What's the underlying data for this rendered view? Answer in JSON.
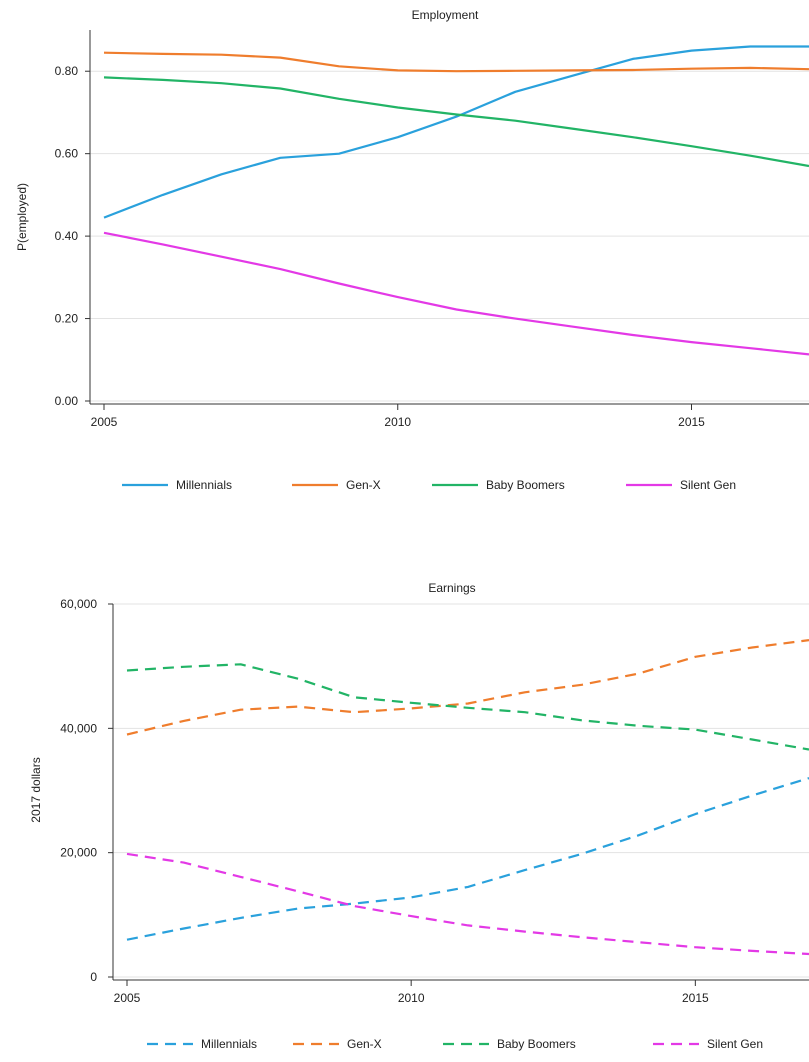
{
  "chart_data": [
    {
      "type": "line",
      "title": "Employment",
      "xlabel": "",
      "ylabel": "P(employed)",
      "xlim": [
        2005,
        2017
      ],
      "ylim": [
        0,
        0.9
      ],
      "x_ticks": [
        2005,
        2010,
        2015
      ],
      "y_ticks": [
        0,
        0.2,
        0.4,
        0.6,
        0.8
      ],
      "y_tick_labels": [
        "0.00",
        "0.20",
        "0.40",
        "0.60",
        "0.80"
      ],
      "line_style": "solid",
      "grid": "horizontal",
      "legend_position": "bottom",
      "x": [
        2005,
        2006,
        2007,
        2008,
        2009,
        2010,
        2011,
        2012,
        2013,
        2014,
        2015,
        2016,
        2017
      ],
      "series": [
        {
          "name": "Millennials",
          "color": "#2aa1dc",
          "values": [
            0.445,
            0.5,
            0.55,
            0.59,
            0.6,
            0.64,
            0.69,
            0.75,
            0.79,
            0.83,
            0.85,
            0.86,
            0.86
          ]
        },
        {
          "name": "Gen-X",
          "color": "#ef7d2d",
          "values": [
            0.845,
            0.842,
            0.84,
            0.833,
            0.812,
            0.802,
            0.8,
            0.801,
            0.802,
            0.803,
            0.806,
            0.808,
            0.805
          ]
        },
        {
          "name": "Baby Boomers",
          "color": "#22b466",
          "values": [
            0.785,
            0.779,
            0.771,
            0.758,
            0.733,
            0.712,
            0.695,
            0.68,
            0.66,
            0.64,
            0.618,
            0.595,
            0.57
          ]
        },
        {
          "name": "Silent Gen",
          "color": "#e339e6",
          "values": [
            0.408,
            0.38,
            0.35,
            0.32,
            0.285,
            0.252,
            0.222,
            0.2,
            0.18,
            0.16,
            0.143,
            0.128,
            0.113
          ]
        }
      ]
    },
    {
      "type": "line",
      "title": "Earnings",
      "xlabel": "",
      "ylabel": "2017 dollars",
      "xlim": [
        2005,
        2017
      ],
      "ylim": [
        0,
        60000
      ],
      "x_ticks": [
        2005,
        2010,
        2015
      ],
      "y_ticks": [
        0,
        20000,
        40000,
        60000
      ],
      "y_tick_labels": [
        "0",
        "20,000",
        "40,000",
        "60,000"
      ],
      "line_style": "dashed",
      "grid": "horizontal",
      "legend_position": "bottom",
      "x": [
        2005,
        2006,
        2007,
        2008,
        2009,
        2010,
        2011,
        2012,
        2013,
        2014,
        2015,
        2016,
        2017
      ],
      "series": [
        {
          "name": "Millennials",
          "color": "#2aa1dc",
          "values": [
            6000,
            7800,
            9500,
            11000,
            11800,
            12800,
            14500,
            17200,
            19800,
            22800,
            26200,
            29200,
            32000
          ]
        },
        {
          "name": "Gen-X",
          "color": "#ef7d2d",
          "values": [
            39000,
            41200,
            43000,
            43500,
            42600,
            43200,
            44000,
            45800,
            47000,
            48800,
            51500,
            53000,
            54200
          ]
        },
        {
          "name": "Baby Boomers",
          "color": "#22b466",
          "values": [
            49300,
            49900,
            50300,
            48000,
            45000,
            44100,
            43300,
            42600,
            41300,
            40400,
            39800,
            38200,
            36600
          ]
        },
        {
          "name": "Silent Gen",
          "color": "#e339e6",
          "values": [
            19800,
            18400,
            16100,
            13800,
            11400,
            9800,
            8300,
            7300,
            6400,
            5600,
            4800,
            4200,
            3700
          ]
        }
      ]
    }
  ]
}
